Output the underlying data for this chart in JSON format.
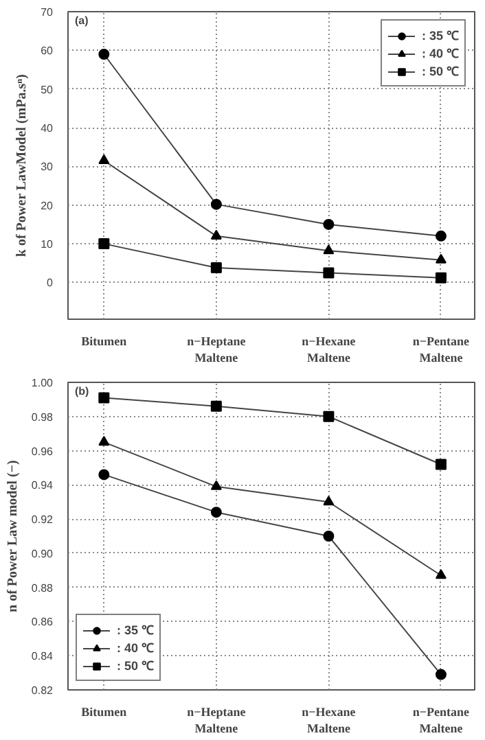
{
  "chart_data": [
    {
      "type": "line",
      "categories": [
        "Bitumen",
        "n−Heptane\nMaltene",
        "n−Hexane\nMaltene",
        "n−Pentane\nMaltene"
      ],
      "ylabel": "k of Power LawModel (mPa.sⁿ)",
      "annotations": [
        "(a)"
      ],
      "ylim": [
        -9.5,
        70
      ],
      "yticks": [
        0,
        10,
        20,
        30,
        40,
        50,
        60,
        70
      ],
      "grid": true,
      "legend": "top right",
      "series": [
        {
          "name": ": 35 ℃",
          "color": "#000000",
          "marker": "circle",
          "values": [
            59,
            20.2,
            15,
            12
          ]
        },
        {
          "name": ": 40 ℃",
          "color": "#000000",
          "marker": "triangle",
          "values": [
            31.5,
            12,
            8.2,
            5.8
          ]
        },
        {
          "name": ": 50 ℃",
          "color": "#000000",
          "marker": "square",
          "values": [
            10,
            3.8,
            2.5,
            1.2
          ]
        }
      ]
    },
    {
      "type": "line",
      "categories": [
        "Bitumen",
        "n−Heptane\nMaltene",
        "n−Hexane\nMaltene",
        "n−Pentane\nMaltene"
      ],
      "ylabel": "n of Power Law model (−)",
      "annotations": [
        "(b)"
      ],
      "ylim": [
        0.82,
        1.0
      ],
      "yticks": [
        0.82,
        0.84,
        0.86,
        0.88,
        {
          "value": 0.9,
          "label": "0.90"
        },
        0.92,
        0.94,
        0.96,
        0.98,
        {
          "value": 1.0,
          "label": "1.00"
        }
      ],
      "grid": true,
      "legend": "bottom left",
      "series": [
        {
          "name": ": 35 ℃",
          "color": "#000000",
          "marker": "circle",
          "values": [
            0.946,
            0.924,
            0.91,
            0.829
          ]
        },
        {
          "name": ": 40 ℃",
          "color": "#000000",
          "marker": "triangle",
          "values": [
            0.965,
            0.939,
            0.93,
            0.887
          ]
        },
        {
          "name": ": 50 ℃",
          "color": "#000000",
          "marker": "square",
          "values": [
            0.991,
            0.986,
            0.98,
            0.952
          ]
        }
      ]
    }
  ]
}
